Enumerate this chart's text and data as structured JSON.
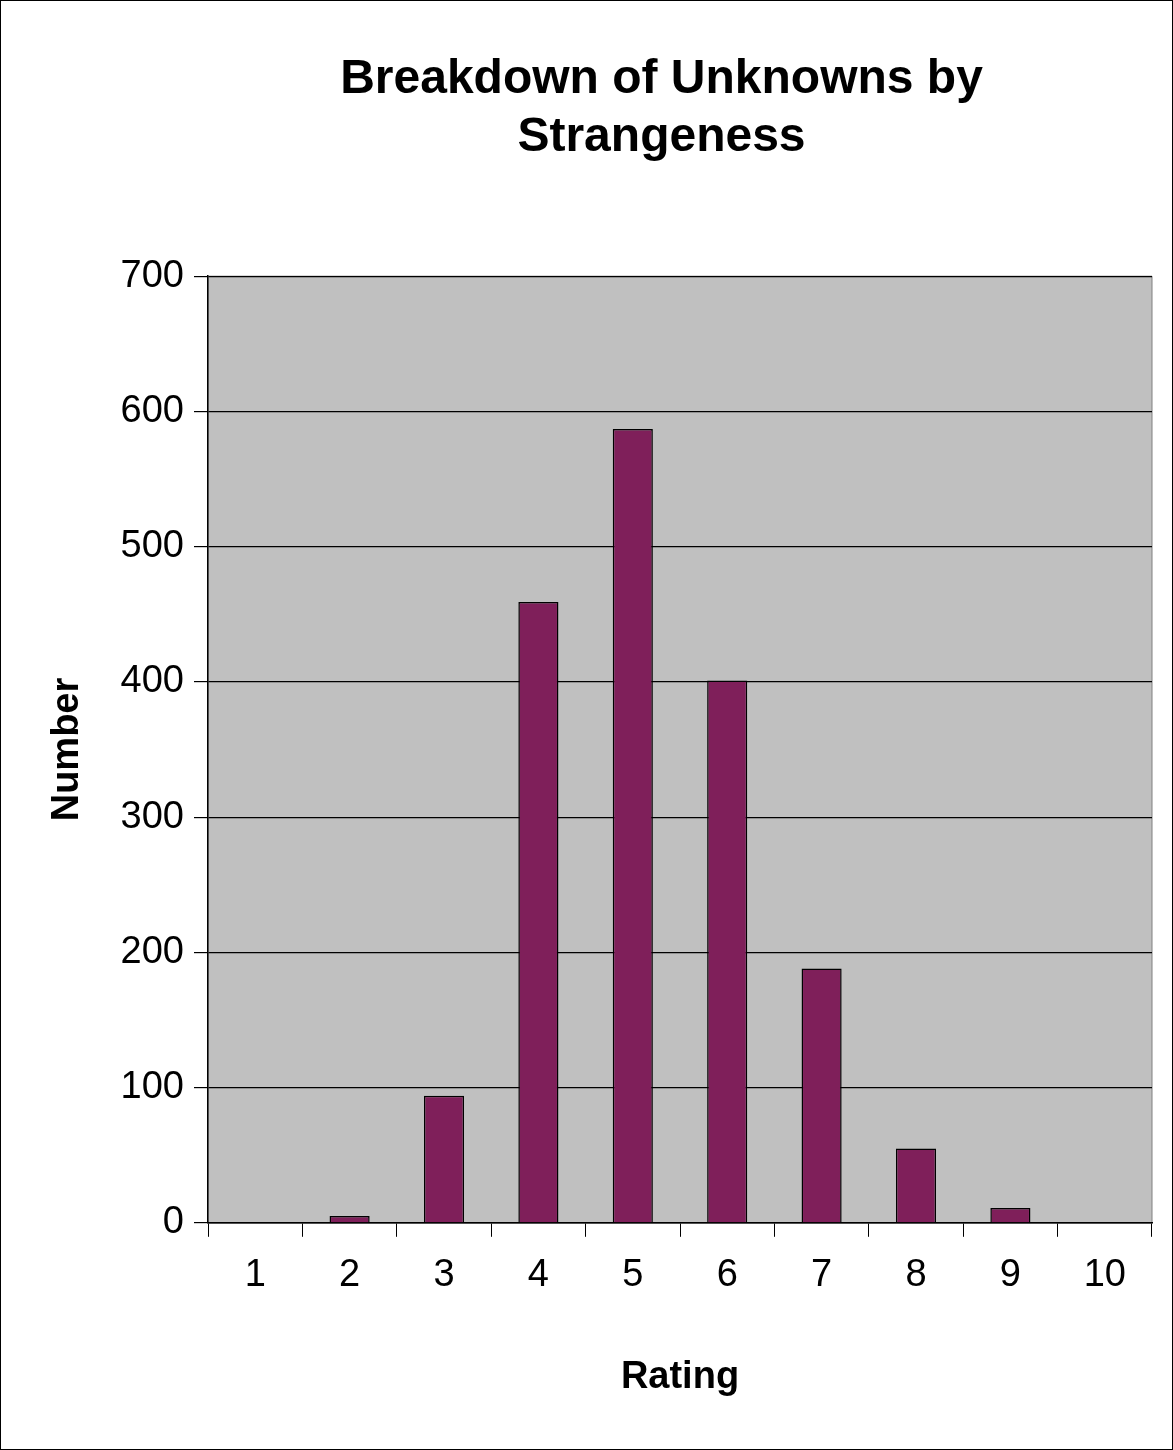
{
  "chart_data": {
    "type": "bar",
    "title": "Breakdown of Unknowns by Strangeness",
    "xlabel": "Rating",
    "ylabel": "Number",
    "categories": [
      "1",
      "2",
      "3",
      "4",
      "5",
      "6",
      "7",
      "8",
      "9",
      "10"
    ],
    "values": [
      0,
      5,
      94,
      459,
      587,
      401,
      188,
      55,
      11,
      0
    ],
    "color": "#7f1f5a",
    "ylim": [
      0,
      700
    ],
    "yticks": [
      0,
      100,
      200,
      300,
      400,
      500,
      600,
      700
    ],
    "grid": "y",
    "legend": false
  }
}
